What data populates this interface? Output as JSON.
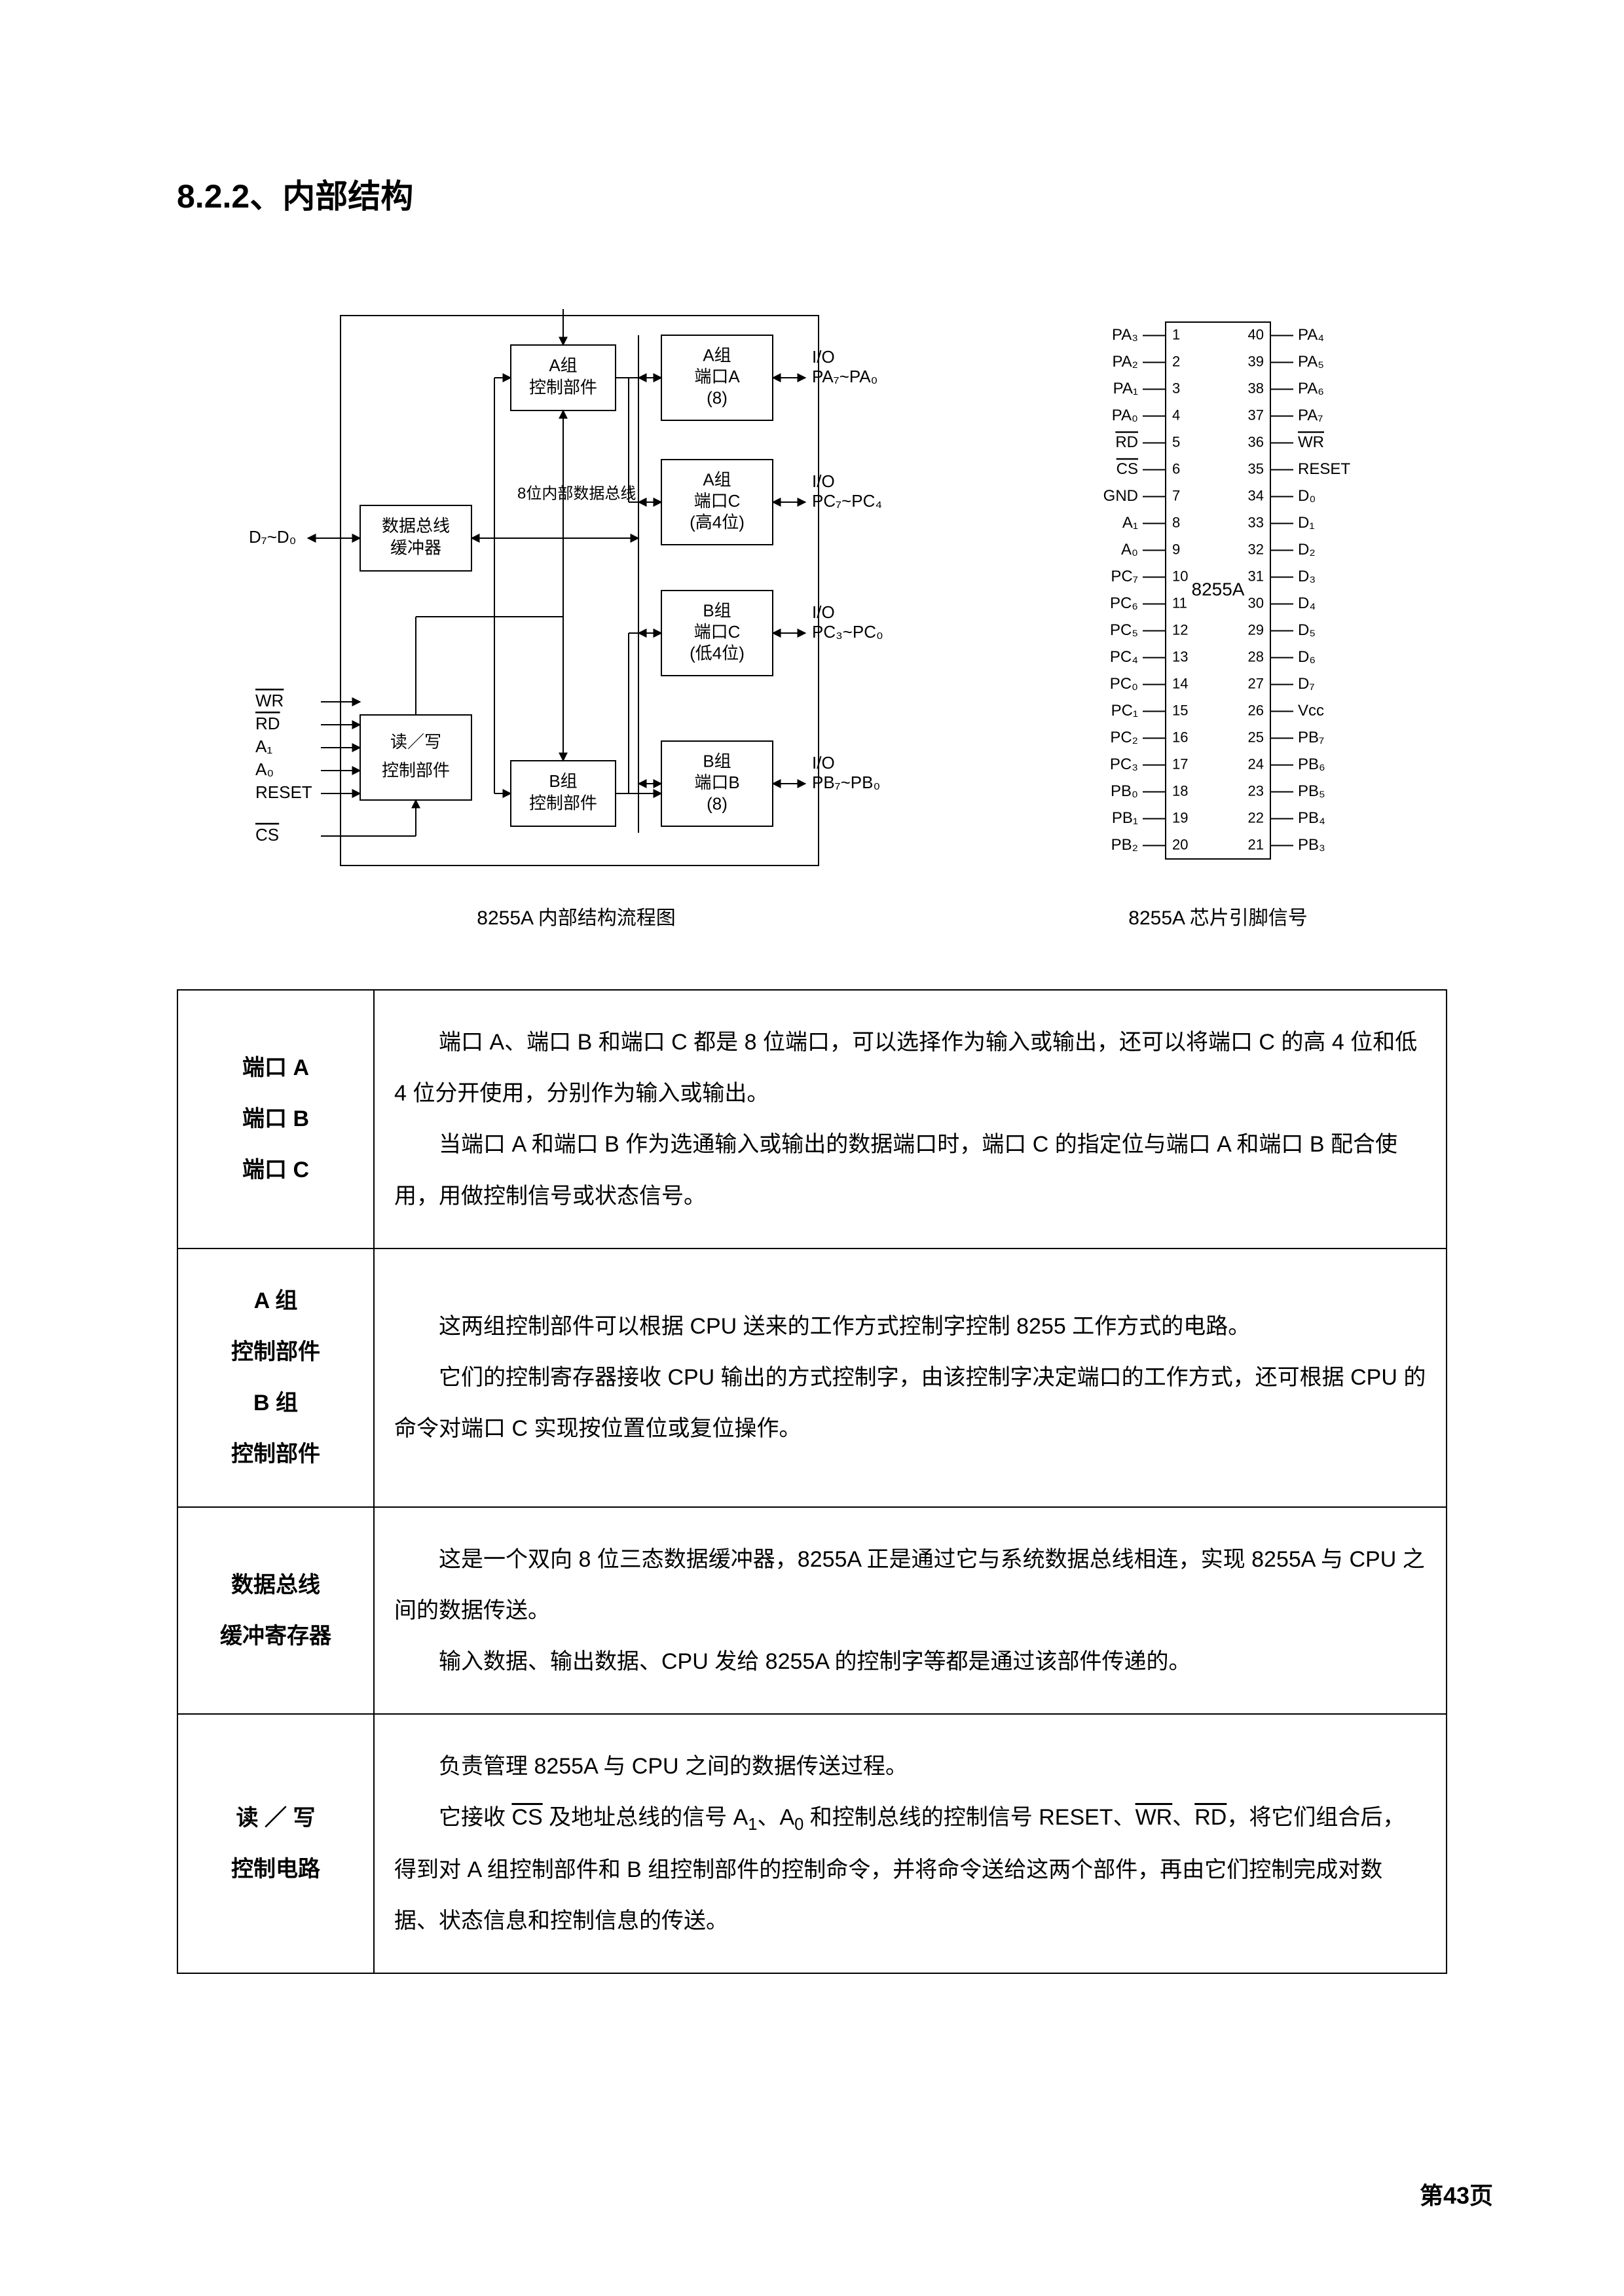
{
  "heading": "8.2.2、内部结构",
  "block_diagram": {
    "caption": "8255A 内部结构流程图",
    "colors": {
      "stroke": "#000000",
      "bg": "#ffffff"
    },
    "stroke_width": 2,
    "boxes": {
      "data_bus_buffer": {
        "line1": "数据总线",
        "line2": "缓冲器"
      },
      "rw_control": {
        "line1": "读／写",
        "line2": "控制部件"
      },
      "groupA_ctrl": {
        "line1": "A组",
        "line2": "控制部件"
      },
      "groupB_ctrl": {
        "line1": "B组",
        "line2": "控制部件"
      },
      "portA": {
        "l1": "A组",
        "l2": "端口A",
        "l3": "(8)"
      },
      "portCH": {
        "l1": "A组",
        "l2": "端口C",
        "l3": "(高4位)"
      },
      "portCL": {
        "l1": "B组",
        "l2": "端口C",
        "l3": "(低4位)"
      },
      "portB": {
        "l1": "B组",
        "l2": "端口B",
        "l3": "(8)"
      }
    },
    "internal_bus_label": "8位内部数据总线",
    "left_signals": {
      "d_bus": "D₇~D₀",
      "list": [
        "WR",
        "RD",
        "A₁",
        "A₀",
        "RESET",
        "CS"
      ],
      "overline": {
        "WR": true,
        "RD": true,
        "CS": true
      }
    },
    "right_io": {
      "header": "I/O",
      "portA": "PA₇~PA₀",
      "portCH": "PC₇~PC₄",
      "portCL": "PC₃~PC₀",
      "portB": "PB₇~PB₀"
    }
  },
  "pinout": {
    "caption": "8255A 芯片引脚信号",
    "chip_label": "8255A",
    "colors": {
      "stroke": "#000000"
    },
    "stroke_width": 2,
    "left": [
      {
        "n": 1,
        "t": "PA₃"
      },
      {
        "n": 2,
        "t": "PA₂"
      },
      {
        "n": 3,
        "t": "PA₁"
      },
      {
        "n": 4,
        "t": "PA₀"
      },
      {
        "n": 5,
        "t": "RD",
        "ol": true
      },
      {
        "n": 6,
        "t": "CS",
        "ol": true
      },
      {
        "n": 7,
        "t": "GND"
      },
      {
        "n": 8,
        "t": "A₁"
      },
      {
        "n": 9,
        "t": "A₀"
      },
      {
        "n": 10,
        "t": "PC₇"
      },
      {
        "n": 11,
        "t": "PC₆"
      },
      {
        "n": 12,
        "t": "PC₅"
      },
      {
        "n": 13,
        "t": "PC₄"
      },
      {
        "n": 14,
        "t": "PC₀"
      },
      {
        "n": 15,
        "t": "PC₁"
      },
      {
        "n": 16,
        "t": "PC₂"
      },
      {
        "n": 17,
        "t": "PC₃"
      },
      {
        "n": 18,
        "t": "PB₀"
      },
      {
        "n": 19,
        "t": "PB₁"
      },
      {
        "n": 20,
        "t": "PB₂"
      }
    ],
    "right": [
      {
        "n": 40,
        "t": "PA₄"
      },
      {
        "n": 39,
        "t": "PA₅"
      },
      {
        "n": 38,
        "t": "PA₆"
      },
      {
        "n": 37,
        "t": "PA₇"
      },
      {
        "n": 36,
        "t": "WR",
        "ol": true
      },
      {
        "n": 35,
        "t": "RESET"
      },
      {
        "n": 34,
        "t": "D₀"
      },
      {
        "n": 33,
        "t": "D₁"
      },
      {
        "n": 32,
        "t": "D₂"
      },
      {
        "n": 31,
        "t": "D₃"
      },
      {
        "n": 30,
        "t": "D₄"
      },
      {
        "n": 29,
        "t": "D₅"
      },
      {
        "n": 28,
        "t": "D₆"
      },
      {
        "n": 27,
        "t": "D₇"
      },
      {
        "n": 26,
        "t": "Vcc"
      },
      {
        "n": 25,
        "t": "PB₇"
      },
      {
        "n": 24,
        "t": "PB₆"
      },
      {
        "n": 23,
        "t": "PB₅"
      },
      {
        "n": 22,
        "t": "PB₄"
      },
      {
        "n": 21,
        "t": "PB₃"
      }
    ]
  },
  "table": [
    {
      "label_lines": [
        "端口 A",
        "端口 B",
        "端口 C"
      ],
      "desc": "　　端口 A、端口 B 和端口 C 都是 8 位端口，可以选择作为输入或输出，还可以将端口 C 的高 4 位和低 4 位分开使用，分别作为输入或输出。\n　　当端口 A 和端口 B 作为选通输入或输出的数据端口时，端口 C 的指定位与端口 A 和端口 B 配合使用，用做控制信号或状态信号。"
    },
    {
      "label_lines": [
        "A 组",
        "控制部件",
        "B 组",
        "控制部件"
      ],
      "desc": "　　这两组控制部件可以根据 CPU 送来的工作方式控制字控制 8255 工作方式的电路。\n　　它们的控制寄存器接收 CPU 输出的方式控制字，由该控制字决定端口的工作方式，还可根据 CPU 的命令对端口 C 实现按位置位或复位操作。"
    },
    {
      "label_lines": [
        "数据总线",
        "缓冲寄存器"
      ],
      "desc": "　　这是一个双向 8 位三态数据缓冲器，8255A 正是通过它与系统数据总线相连，实现 8255A 与 CPU 之间的数据传送。\n　　输入数据、输出数据、CPU 发给 8255A 的控制字等都是通过该部件传递的。"
    },
    {
      "label_lines": [
        "读 ／ 写",
        "控制电路"
      ],
      "desc_html": "　　负责管理 8255A 与 CPU 之间的数据传送过程。<br>　　它接收 <span class='ol'>CS</span> 及地址总线的信号 A<span class='sub'>1</span>、A<span class='sub'>0</span> 和控制总线的控制信号 RESET、<span class='ol'>WR</span>、<span class='ol'>RD</span>，将它们组合后，得到对 A 组控制部件和 B 组控制部件的控制命令，并将命令送给这两个部件，再由它们控制完成对数据、状态信息和控制信息的传送。"
    }
  ],
  "page_number": "第43页"
}
